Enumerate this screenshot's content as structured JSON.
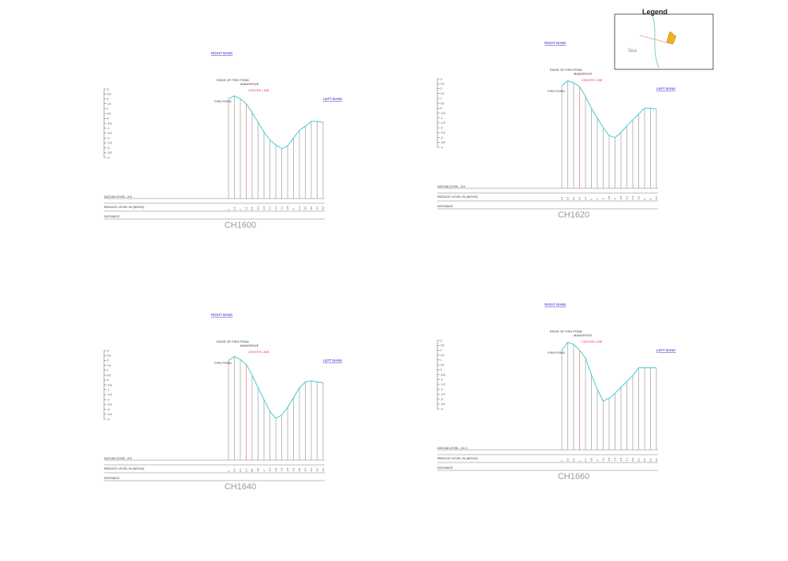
{
  "labels": {
    "right_bank": "RIGHT BANK",
    "left_bank": "LEFT BANK",
    "edge": "EDGE OF FISH POND",
    "mangrove": "MANGROVE",
    "center": "CENTER LINE",
    "fish_pond": "FISH POND",
    "reduce_level": "REDUCE LEVEL IN (MOVD)",
    "distance": "DISTANCE"
  },
  "yticks": [
    3.0,
    2.5,
    2.0,
    1.5,
    1.0,
    0.5,
    0.0,
    -0.5,
    -1.0,
    -1.5,
    -2.0,
    -2.5,
    -3.0,
    -3.5,
    -4.0
  ],
  "ylim": [
    -4.0,
    3.0
  ],
  "legend": {
    "title": "Legend",
    "sea": "Sea"
  },
  "sections": [
    {
      "title": "CH1600",
      "datum": "DATUM LEVEL -9.0",
      "levels": [
        2.0,
        2.3,
        2.0,
        1.5,
        0.6,
        -0.4,
        -1.4,
        -2.2,
        -2.7,
        -3.1,
        -2.8,
        -2.0,
        -1.2,
        -0.8,
        -0.3,
        -0.3,
        -0.4
      ]
    },
    {
      "title": "CH1620",
      "datum": "DATUM LEVEL -9.0",
      "levels": [
        2.3,
        2.8,
        2.6,
        2.2,
        1.2,
        0.0,
        -1.0,
        -2.0,
        -2.8,
        -3.0,
        -2.5,
        -1.8,
        -1.2,
        -0.6,
        0.0,
        0.0,
        -0.1
      ]
    },
    {
      "title": "CH1640",
      "datum": "DATUM LEVEL -9.0",
      "levels": [
        2.0,
        2.4,
        2.1,
        1.6,
        0.5,
        -0.8,
        -2.0,
        -3.2,
        -3.9,
        -3.6,
        -2.8,
        -1.8,
        -0.8,
        -0.2,
        -0.1,
        -0.2,
        -0.3
      ]
    },
    {
      "title": "CH1660",
      "datum": "DATUM LEVEL -10.0",
      "levels": [
        2.0,
        2.8,
        2.6,
        2.0,
        1.2,
        -0.5,
        -2.0,
        -3.2,
        -2.9,
        -2.4,
        -1.8,
        -1.2,
        -0.6,
        0.2,
        0.2,
        0.2,
        0.2
      ]
    }
  ]
}
